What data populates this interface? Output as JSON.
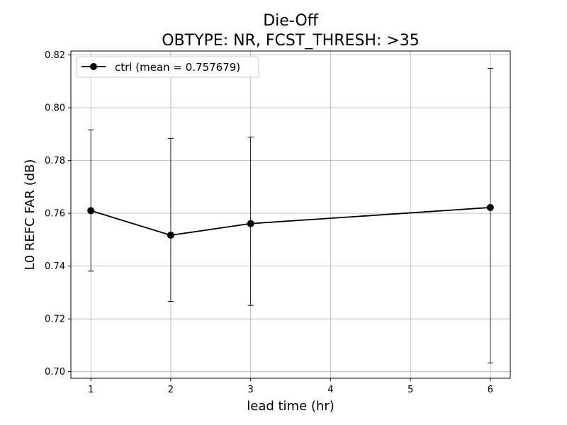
{
  "chart_data": {
    "type": "line",
    "title_line1": "Die-Off",
    "title_line2": "OBTYPE: NR,  FCST_THRESH: >35",
    "xlabel": "lead time (hr)",
    "ylabel": "L0 REFC FAR (dB)",
    "xlim": [
      0.75,
      6.25
    ],
    "ylim": [
      0.6975,
      0.8215
    ],
    "xticks": [
      1,
      2,
      3,
      4,
      5,
      6
    ],
    "yticks": [
      0.7,
      0.72,
      0.74,
      0.76,
      0.78,
      0.8,
      0.82
    ],
    "ytick_labels": [
      "0.70",
      "0.72",
      "0.74",
      "0.76",
      "0.78",
      "0.80",
      "0.82"
    ],
    "grid": true,
    "legend_position": "top-left",
    "series": [
      {
        "name": "ctrl (mean = 0.757679)",
        "color": "#000000",
        "marker": "circle",
        "x": [
          1,
          2,
          3,
          6
        ],
        "y": [
          0.761,
          0.7517,
          0.7561,
          0.7622
        ],
        "err_low": [
          0.7381,
          0.7266,
          0.7251,
          0.7033
        ],
        "err_high": [
          0.7916,
          0.7884,
          0.7889,
          0.8149
        ]
      }
    ]
  }
}
